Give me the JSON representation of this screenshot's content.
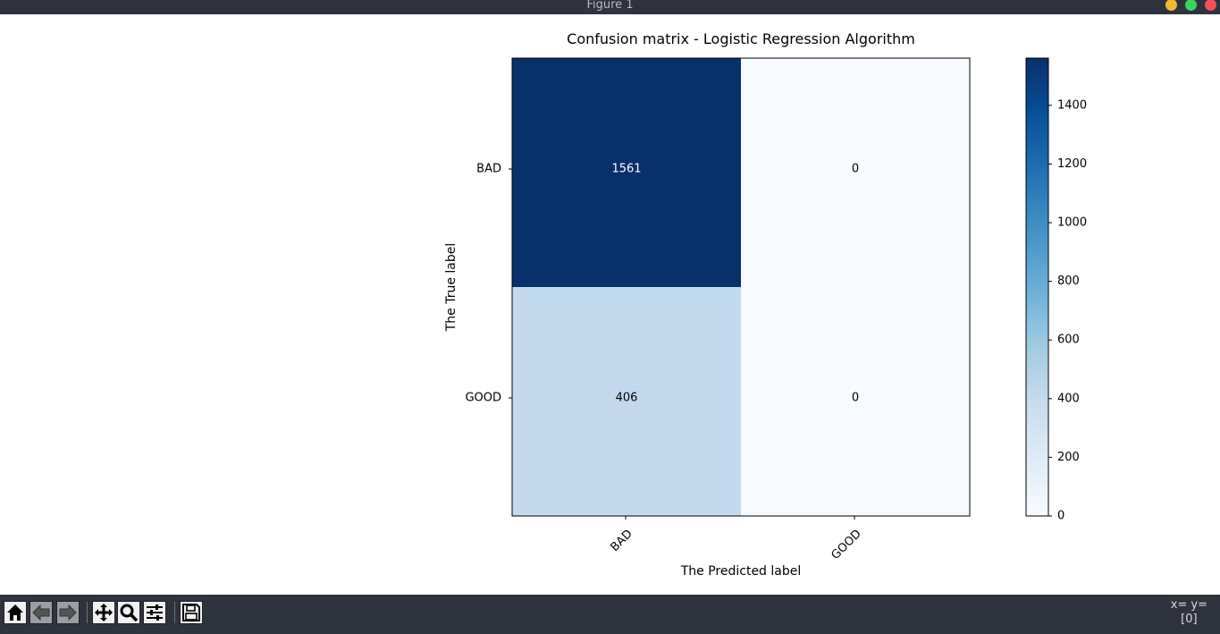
{
  "window": {
    "title": "Figure 1"
  },
  "toolbar": {
    "buttons": [
      {
        "name": "home",
        "icon": "home-icon"
      },
      {
        "name": "back",
        "icon": "arrow-left-icon"
      },
      {
        "name": "forward",
        "icon": "arrow-right-icon"
      },
      {
        "name": "pan",
        "icon": "move-icon"
      },
      {
        "name": "zoom",
        "icon": "magnifier-icon"
      },
      {
        "name": "configure-subplots",
        "icon": "sliders-icon"
      },
      {
        "name": "save",
        "icon": "floppy-disk-icon"
      }
    ],
    "coords_line1": "x= y=",
    "coords_line2": "[0]"
  },
  "chart_data": {
    "type": "heatmap",
    "title": "Confusion matrix - Logistic Regression Algorithm",
    "xlabel": "The Predicted label",
    "ylabel": "The True label",
    "x_categories": [
      "BAD",
      "GOOD"
    ],
    "y_categories": [
      "BAD",
      "GOOD"
    ],
    "values": [
      [
        1561,
        0
      ],
      [
        406,
        0
      ]
    ],
    "colormap": "Blues",
    "colormap_low": "#f7fbff",
    "colormap_high": "#08306b",
    "text_color_dark": "#ffffff",
    "text_color_light": "#000000",
    "colorbar": {
      "min": 0,
      "max": 1561,
      "ticks": [
        0,
        200,
        400,
        600,
        800,
        1000,
        1200,
        1400
      ]
    },
    "xtick_rotation_deg": 45,
    "grid": false
  }
}
